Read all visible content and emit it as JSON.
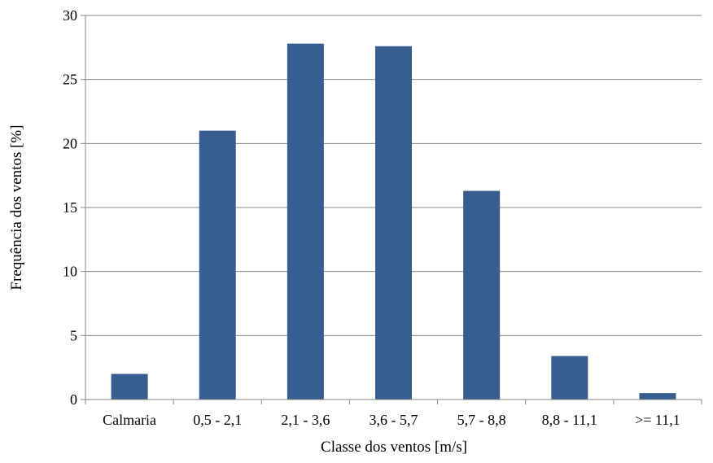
{
  "chart_data": {
    "type": "bar",
    "categories": [
      "Calmaria",
      "0,5 - 2,1",
      "2,1 - 3,6",
      "3,6 - 5,7",
      "5,7 - 8,8",
      "8,8 - 11,1",
      ">= 11,1"
    ],
    "values": [
      2.0,
      21.0,
      27.8,
      27.6,
      16.3,
      3.4,
      0.5
    ],
    "xlabel": "Classe dos ventos [m/s]",
    "ylabel": "Frequência dos ventos [%]",
    "ylim": [
      0,
      30
    ],
    "yticks": [
      0,
      5,
      10,
      15,
      20,
      25,
      30
    ],
    "grid": true,
    "legend": "none",
    "colors": {
      "bar": "#375E8F"
    }
  }
}
